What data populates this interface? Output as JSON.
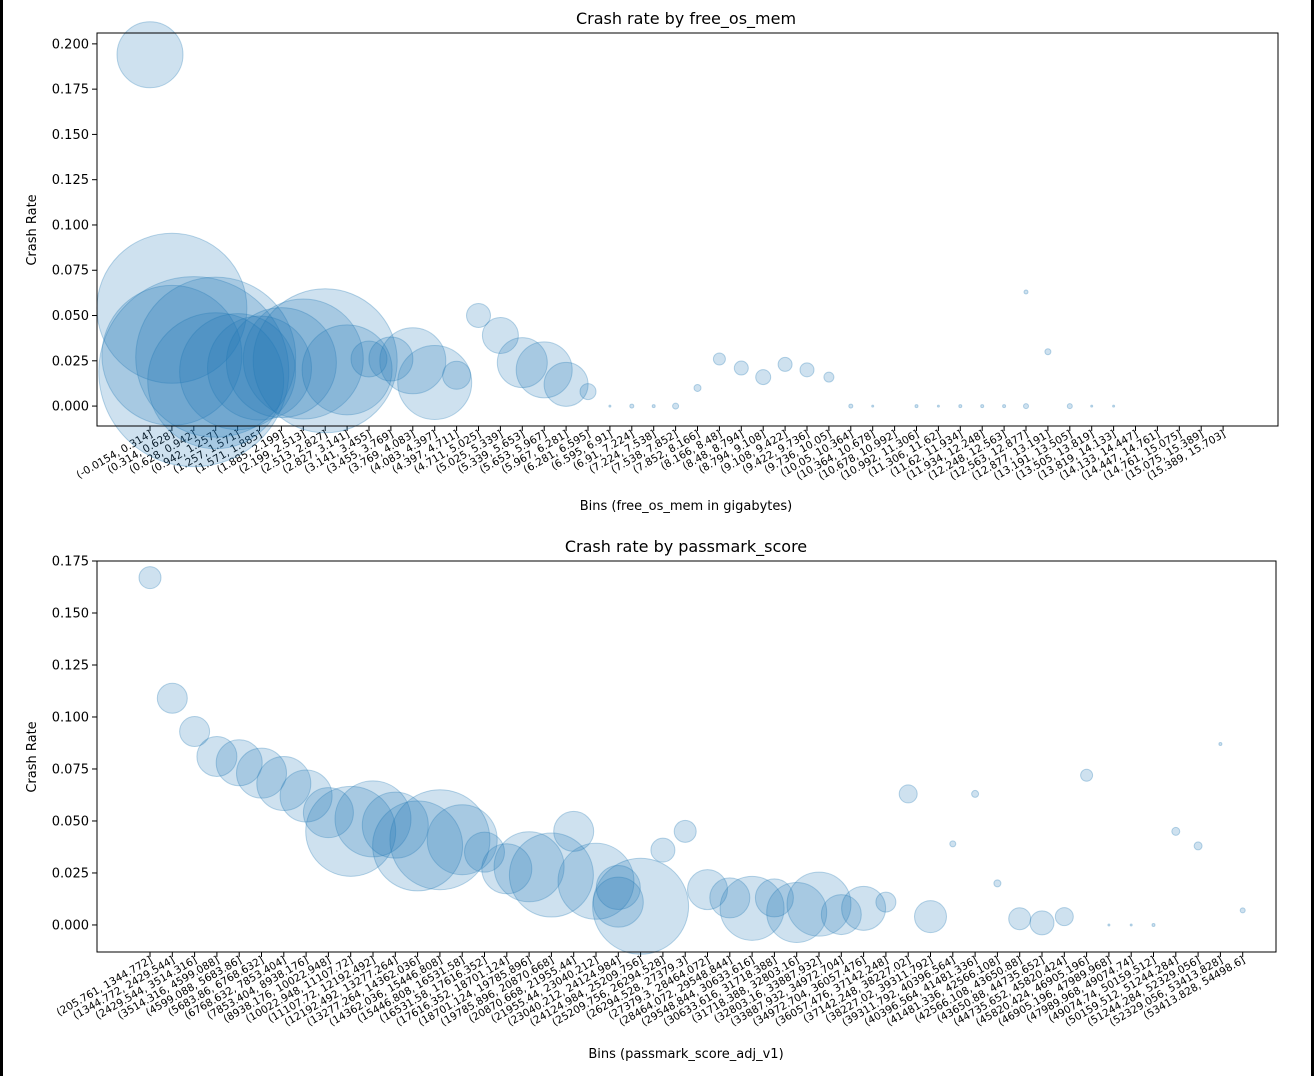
{
  "chart_data": [
    {
      "type": "scatter",
      "title": "Crash rate by free_os_mem",
      "xlabel": "Bins (free_os_mem in gigabytes)",
      "ylabel": "Crash Rate",
      "ylim": [
        -0.011,
        0.206
      ],
      "yticks": [
        "0.000",
        "0.025",
        "0.050",
        "0.075",
        "0.100",
        "0.125",
        "0.150",
        "0.175",
        "0.200"
      ],
      "ytick_values": [
        0,
        0.025,
        0.05,
        0.075,
        0.1,
        0.125,
        0.15,
        0.175,
        0.2
      ],
      "color": "#1f77b4",
      "alpha": 0.22,
      "categories": [
        "(-0.0154, 0.314]",
        "(0.314, 0.628]",
        "(0.628, 0.942]",
        "(0.942, 1.257]",
        "(1.257, 1.571]",
        "(1.571, 1.885]",
        "(1.885, 2.199]",
        "(2.199, 2.513]",
        "(2.513, 2.827]",
        "(2.827, 3.141]",
        "(3.141, 3.455]",
        "(3.455, 3.769]",
        "(3.769, 4.083]",
        "(4.083, 4.397]",
        "(4.397, 4.711]",
        "(4.711, 5.025]",
        "(5.025, 5.339]",
        "(5.339, 5.653]",
        "(5.653, 5.967]",
        "(5.967, 6.281]",
        "(6.281, 6.595]",
        "(6.595, 6.91]",
        "(6.91, 7.224]",
        "(7.224, 7.538]",
        "(7.538, 7.852]",
        "(7.852, 8.166]",
        "(8.166, 8.48]",
        "(8.48, 8.794]",
        "(8.794, 9.108]",
        "(9.108, 9.422]",
        "(9.422, 9.736]",
        "(9.736, 10.05]",
        "(10.05, 10.364]",
        "(10.364, 10.678]",
        "(10.678, 10.992]",
        "(10.992, 11.306]",
        "(11.306, 11.62]",
        "(11.62, 11.934]",
        "(11.934, 12.248]",
        "(12.248, 12.563]",
        "(12.563, 12.877]",
        "(12.877, 13.191]",
        "(13.191, 13.505]",
        "(13.505, 13.819]",
        "(13.819, 14.133]",
        "(14.133, 14.447]",
        "(14.447, 14.761]",
        "(14.761, 15.075]",
        "(15.075, 15.389]",
        "(15.389, 15.703]"
      ],
      "points": [
        {
          "x": 0,
          "y": 0.194,
          "size": 33
        },
        {
          "x": 1,
          "y": 0.054,
          "size": 75
        },
        {
          "x": 1,
          "y": 0.028,
          "size": 70
        },
        {
          "x": 2,
          "y": 0.019,
          "size": 95
        },
        {
          "x": 3,
          "y": 0.027,
          "size": 80
        },
        {
          "x": 3,
          "y": 0.014,
          "size": 68
        },
        {
          "x": 4,
          "y": 0.019,
          "size": 58
        },
        {
          "x": 5,
          "y": 0.021,
          "size": 52
        },
        {
          "x": 6,
          "y": 0.024,
          "size": 55
        },
        {
          "x": 7,
          "y": 0.026,
          "size": 60
        },
        {
          "x": 8,
          "y": 0.025,
          "size": 72
        },
        {
          "x": 9,
          "y": 0.02,
          "size": 45
        },
        {
          "x": 10,
          "y": 0.026,
          "size": 18
        },
        {
          "x": 11,
          "y": 0.026,
          "size": 22
        },
        {
          "x": 12,
          "y": 0.025,
          "size": 33
        },
        {
          "x": 13,
          "y": 0.013,
          "size": 37
        },
        {
          "x": 14,
          "y": 0.017,
          "size": 14
        },
        {
          "x": 15,
          "y": 0.05,
          "size": 12
        },
        {
          "x": 16,
          "y": 0.039,
          "size": 18
        },
        {
          "x": 17,
          "y": 0.024,
          "size": 25
        },
        {
          "x": 18,
          "y": 0.02,
          "size": 28
        },
        {
          "x": 19,
          "y": 0.012,
          "size": 22
        },
        {
          "x": 20,
          "y": 0.008,
          "size": 8
        },
        {
          "x": 21,
          "y": 0.0,
          "size": 1
        },
        {
          "x": 22,
          "y": 0.0,
          "size": 2
        },
        {
          "x": 23,
          "y": 0.0,
          "size": 1.5
        },
        {
          "x": 24,
          "y": 0.0,
          "size": 3
        },
        {
          "x": 25,
          "y": 0.01,
          "size": 3.5
        },
        {
          "x": 26,
          "y": 0.026,
          "size": 6
        },
        {
          "x": 27,
          "y": 0.021,
          "size": 7
        },
        {
          "x": 28,
          "y": 0.016,
          "size": 7.5
        },
        {
          "x": 29,
          "y": 0.023,
          "size": 7
        },
        {
          "x": 30,
          "y": 0.02,
          "size": 7
        },
        {
          "x": 31,
          "y": 0.016,
          "size": 5
        },
        {
          "x": 32,
          "y": 0.0,
          "size": 2
        },
        {
          "x": 33,
          "y": 0.0,
          "size": 1
        },
        {
          "x": 35,
          "y": 0.0,
          "size": 1.5
        },
        {
          "x": 36,
          "y": 0.0,
          "size": 1
        },
        {
          "x": 37,
          "y": 0.0,
          "size": 1.5
        },
        {
          "x": 38,
          "y": 0.0,
          "size": 1.5
        },
        {
          "x": 39,
          "y": 0.0,
          "size": 1.5
        },
        {
          "x": 40,
          "y": 0.063,
          "size": 2
        },
        {
          "x": 40,
          "y": 0.0,
          "size": 2.5
        },
        {
          "x": 41,
          "y": 0.03,
          "size": 3
        },
        {
          "x": 42,
          "y": 0.0,
          "size": 2.5
        },
        {
          "x": 43,
          "y": 0.0,
          "size": 1
        },
        {
          "x": 44,
          "y": 0.0,
          "size": 1
        }
      ]
    },
    {
      "type": "scatter",
      "title": "Crash rate by passmark_score",
      "xlabel": "Bins (passmark_score_adj_v1)",
      "ylabel": "Crash Rate",
      "ylim": [
        -0.013,
        0.175
      ],
      "yticks": [
        "0.000",
        "0.025",
        "0.050",
        "0.075",
        "0.100",
        "0.125",
        "0.150",
        "0.175"
      ],
      "ytick_values": [
        0,
        0.025,
        0.05,
        0.075,
        0.1,
        0.125,
        0.15,
        0.175
      ],
      "color": "#1f77b4",
      "alpha": 0.22,
      "categories": [
        "(205.761, 1344.772]",
        "(1344.772, 2429.544]",
        "(2429.544, 3514.316]",
        "(3514.316, 4599.088]",
        "(4599.088, 5683.86]",
        "(5683.86, 6768.632]",
        "(6768.632, 7853.404]",
        "(7853.404, 8938.176]",
        "(8938.176, 10022.948]",
        "(10022.948, 11107.72]",
        "(11107.72, 12192.492]",
        "(12192.492, 13277.264]",
        "(13277.264, 14362.036]",
        "(14362.036, 15446.808]",
        "(15446.808, 16531.58]",
        "(16531.58, 17616.352]",
        "(17616.352, 18701.124]",
        "(18701.124, 19785.896]",
        "(19785.896, 20870.668]",
        "(20870.668, 21955.44]",
        "(21955.44, 23040.212]",
        "(23040.212, 24124.984]",
        "(24124.984, 25209.756]",
        "(25209.756, 26294.528]",
        "(26294.528, 27379.3]",
        "(27379.3, 28464.072]",
        "(28464.072, 29548.844]",
        "(29548.844, 30633.616]",
        "(30633.616, 31718.388]",
        "(31718.388, 32803.16]",
        "(32803.16, 33887.932]",
        "(33887.932, 34972.704]",
        "(34972.704, 36057.476]",
        "(36057.476, 37142.248]",
        "(37142.248, 38227.02]",
        "(38227.02, 39311.792]",
        "(39311.792, 40396.564]",
        "(40396.564, 41481.336]",
        "(41481.336, 42566.108]",
        "(42566.108, 43650.88]",
        "(43650.88, 44735.652]",
        "(44735.652, 45820.424]",
        "(45820.424, 46905.196]",
        "(46905.196, 47989.968]",
        "(47989.968, 49074.74]",
        "(49074.74, 50159.512]",
        "(50159.512, 51244.284]",
        "(51244.284, 52329.056]",
        "(52329.056, 53413.828]",
        "(53413.828, 54498.6]"
      ],
      "points": [
        {
          "x": 0,
          "y": 0.167,
          "size": 11
        },
        {
          "x": 1,
          "y": 0.109,
          "size": 15
        },
        {
          "x": 2,
          "y": 0.093,
          "size": 15
        },
        {
          "x": 3,
          "y": 0.081,
          "size": 20
        },
        {
          "x": 4,
          "y": 0.078,
          "size": 23
        },
        {
          "x": 5,
          "y": 0.073,
          "size": 25
        },
        {
          "x": 6,
          "y": 0.068,
          "size": 27
        },
        {
          "x": 7,
          "y": 0.062,
          "size": 26
        },
        {
          "x": 8,
          "y": 0.054,
          "size": 25
        },
        {
          "x": 9,
          "y": 0.045,
          "size": 45
        },
        {
          "x": 10,
          "y": 0.051,
          "size": 38
        },
        {
          "x": 11,
          "y": 0.048,
          "size": 33
        },
        {
          "x": 12,
          "y": 0.038,
          "size": 45
        },
        {
          "x": 13,
          "y": 0.041,
          "size": 50
        },
        {
          "x": 14,
          "y": 0.041,
          "size": 35
        },
        {
          "x": 15,
          "y": 0.035,
          "size": 20
        },
        {
          "x": 16,
          "y": 0.027,
          "size": 25
        },
        {
          "x": 17,
          "y": 0.028,
          "size": 35
        },
        {
          "x": 18,
          "y": 0.024,
          "size": 42
        },
        {
          "x": 19,
          "y": 0.045,
          "size": 20
        },
        {
          "x": 20,
          "y": 0.021,
          "size": 38
        },
        {
          "x": 21,
          "y": 0.018,
          "size": 22
        },
        {
          "x": 21,
          "y": 0.011,
          "size": 25
        },
        {
          "x": 22,
          "y": 0.009,
          "size": 48
        },
        {
          "x": 23,
          "y": 0.036,
          "size": 12
        },
        {
          "x": 24,
          "y": 0.045,
          "size": 11
        },
        {
          "x": 25,
          "y": 0.017,
          "size": 20
        },
        {
          "x": 26,
          "y": 0.013,
          "size": 20
        },
        {
          "x": 27,
          "y": 0.008,
          "size": 32
        },
        {
          "x": 28,
          "y": 0.013,
          "size": 19
        },
        {
          "x": 29,
          "y": 0.006,
          "size": 30
        },
        {
          "x": 30,
          "y": 0.01,
          "size": 32
        },
        {
          "x": 31,
          "y": 0.005,
          "size": 20
        },
        {
          "x": 32,
          "y": 0.008,
          "size": 22
        },
        {
          "x": 33,
          "y": 0.011,
          "size": 10
        },
        {
          "x": 34,
          "y": 0.063,
          "size": 9
        },
        {
          "x": 35,
          "y": 0.004,
          "size": 16
        },
        {
          "x": 36,
          "y": 0.039,
          "size": 3
        },
        {
          "x": 37,
          "y": 0.063,
          "size": 3.5
        },
        {
          "x": 38,
          "y": 0.02,
          "size": 3.5
        },
        {
          "x": 39,
          "y": 0.003,
          "size": 11
        },
        {
          "x": 40,
          "y": 0.001,
          "size": 12
        },
        {
          "x": 41,
          "y": 0.004,
          "size": 9
        },
        {
          "x": 42,
          "y": 0.072,
          "size": 6
        },
        {
          "x": 43,
          "y": 0.0,
          "size": 1
        },
        {
          "x": 44,
          "y": 0.0,
          "size": 1
        },
        {
          "x": 45,
          "y": 0.0,
          "size": 1.5
        },
        {
          "x": 46,
          "y": 0.045,
          "size": 4
        },
        {
          "x": 47,
          "y": 0.038,
          "size": 4
        },
        {
          "x": 48,
          "y": 0.087,
          "size": 1.5
        },
        {
          "x": 49,
          "y": 0.007,
          "size": 2.5
        }
      ]
    }
  ]
}
